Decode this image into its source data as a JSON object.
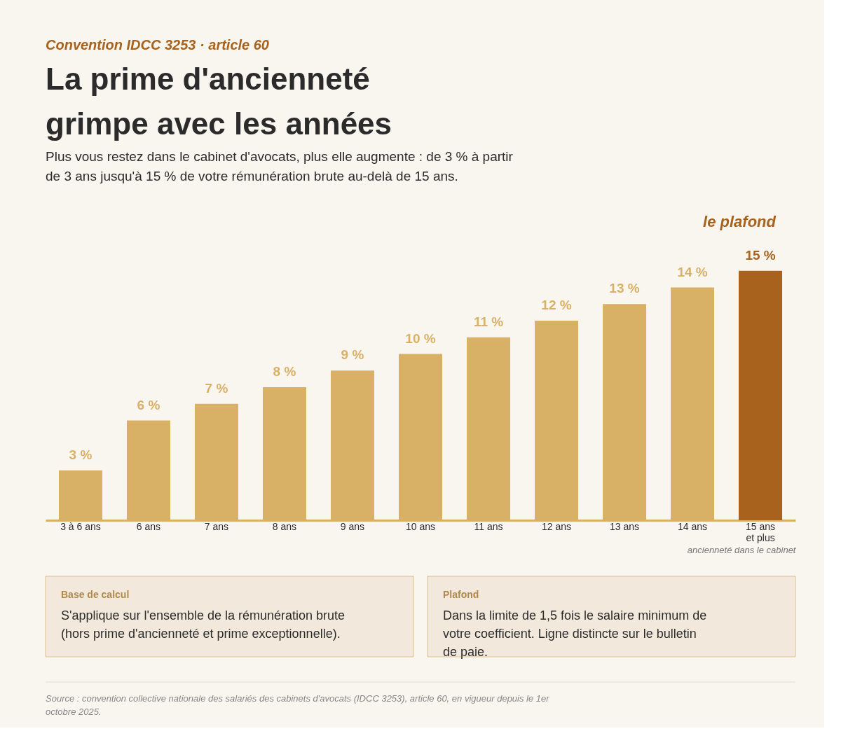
{
  "chart_data": {
    "type": "bar",
    "title": "La prime d'ancienneté grimpe avec les années",
    "subtitle": "Plus vous restez dans le cabinet d'avocats, plus elle augmente : de 3 % à partir de 3 ans jusqu'à 15 % de votre rémunération brute au-delà de 15 ans.",
    "xlabel": "ancienneté dans le cabinet",
    "categories": [
      "3 à 6 ans",
      "6 ans",
      "7 ans",
      "8 ans",
      "9 ans",
      "10 ans",
      "11 ans",
      "12 ans",
      "13 ans",
      "14 ans",
      "15 ans\net plus"
    ],
    "values": [
      3,
      6,
      7,
      8,
      9,
      10,
      11,
      12,
      13,
      14,
      15
    ],
    "value_labels": [
      "3 %",
      "6 %",
      "7 %",
      "8 %",
      "9 %",
      "10 %",
      "11 %",
      "12 %",
      "13 %",
      "14 %",
      "15 %"
    ],
    "colors": [
      "#d9b166",
      "#d9b166",
      "#d9b166",
      "#d9b166",
      "#d9b166",
      "#d9b166",
      "#d9b166",
      "#d9b166",
      "#d9b166",
      "#d9b166",
      "#a8621e"
    ],
    "tick_labels": "x",
    "grid": false,
    "annotations": [
      "Convention IDCC 3253 · article 60",
      {
        "text": "le plafond",
        "x": "15 ans\net plus",
        "y": 15
      },
      "Base de calcul",
      "S'applique sur l'ensemble de la rémunération brute (hors prime d'ancienneté et prime exceptionnelle).",
      "Plafond",
      "Dans la limite de 1,5 fois le salaire minimum de votre coefficient. Ligne distincte sur le bulletin de paie.",
      "Source : convention collective nationale des salariés des cabinets d'avocats (IDCC 3253), article 60, en vigueur depuis le 1er octobre 2025."
    ]
  }
}
